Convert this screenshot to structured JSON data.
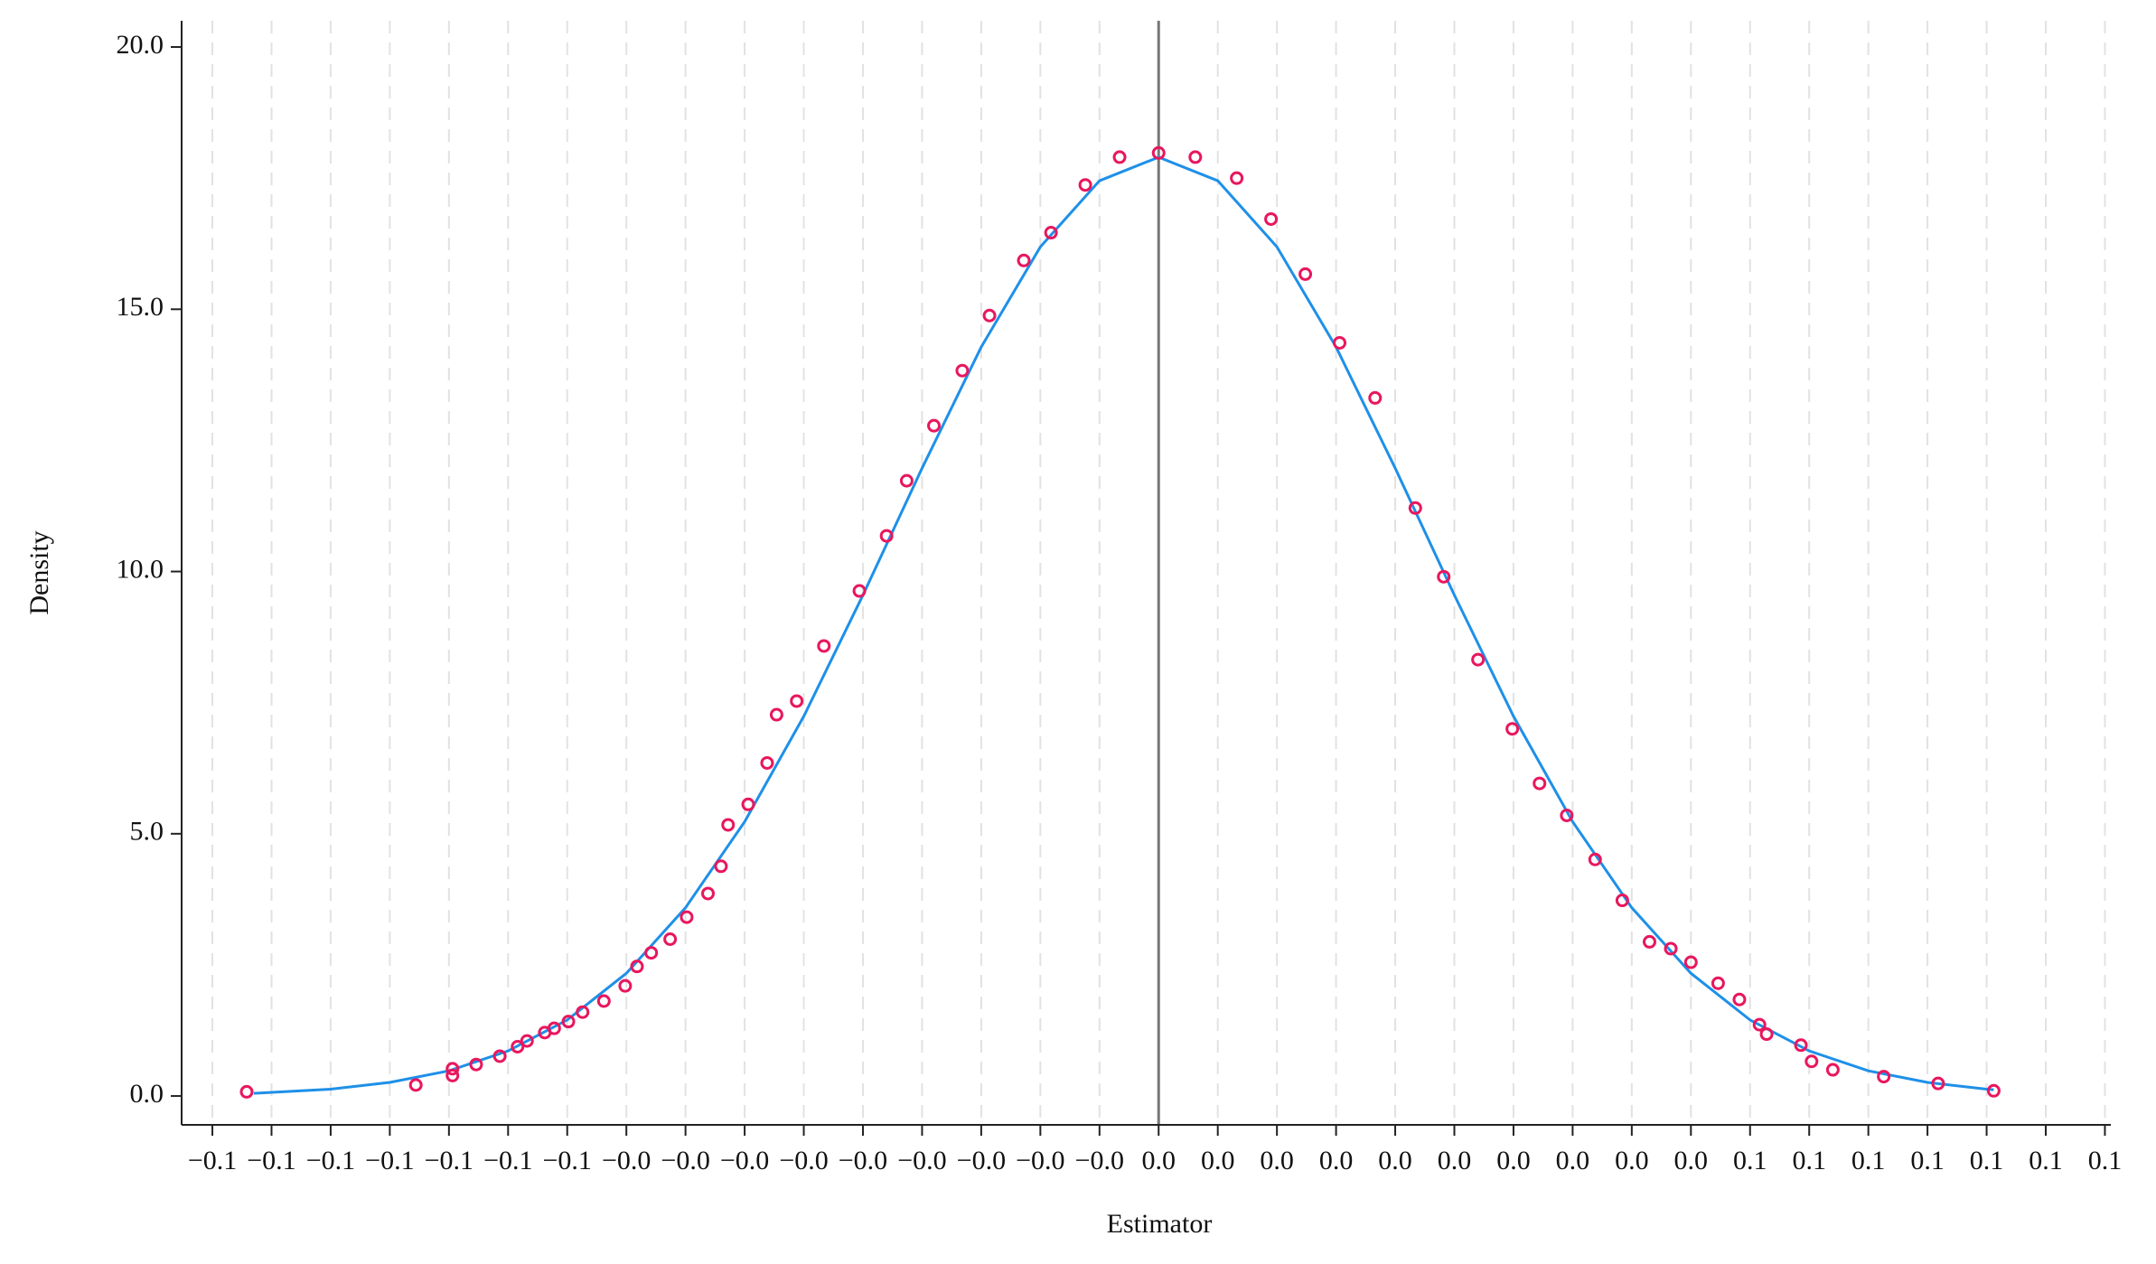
{
  "chart_data": {
    "type": "scatter",
    "xlabel": "Estimator",
    "ylabel": "Density",
    "xlim": [
      -0.0826,
      0.0805
    ],
    "ylim": [
      -0.55,
      20.5
    ],
    "xticks": [
      {
        "value": -0.08,
        "label": "−0.1"
      },
      {
        "value": -0.075,
        "label": "−0.1"
      },
      {
        "value": -0.07,
        "label": "−0.1"
      },
      {
        "value": -0.065,
        "label": "−0.1"
      },
      {
        "value": -0.06,
        "label": "−0.1"
      },
      {
        "value": -0.055,
        "label": "−0.1"
      },
      {
        "value": -0.05,
        "label": "−0.1"
      },
      {
        "value": -0.045,
        "label": "−0.0"
      },
      {
        "value": -0.04,
        "label": "−0.0"
      },
      {
        "value": -0.035,
        "label": "−0.0"
      },
      {
        "value": -0.03,
        "label": "−0.0"
      },
      {
        "value": -0.025,
        "label": "−0.0"
      },
      {
        "value": -0.02,
        "label": "−0.0"
      },
      {
        "value": -0.015,
        "label": "−0.0"
      },
      {
        "value": -0.01,
        "label": "−0.0"
      },
      {
        "value": -0.005,
        "label": "−0.0"
      },
      {
        "value": 0,
        "label": "0.0"
      },
      {
        "value": 0.005,
        "label": "0.0"
      },
      {
        "value": 0.01,
        "label": "0.0"
      },
      {
        "value": 0.015,
        "label": "0.0"
      },
      {
        "value": 0.02,
        "label": "0.0"
      },
      {
        "value": 0.025,
        "label": "0.0"
      },
      {
        "value": 0.03,
        "label": "0.0"
      },
      {
        "value": 0.035,
        "label": "0.0"
      },
      {
        "value": 0.04,
        "label": "0.0"
      },
      {
        "value": 0.045,
        "label": "0.0"
      },
      {
        "value": 0.05,
        "label": "0.1"
      },
      {
        "value": 0.055,
        "label": "0.1"
      },
      {
        "value": 0.06,
        "label": "0.1"
      },
      {
        "value": 0.065,
        "label": "0.1"
      },
      {
        "value": 0.07,
        "label": "0.1"
      },
      {
        "value": 0.075,
        "label": "0.1"
      },
      {
        "value": 0.08,
        "label": "0.1"
      }
    ],
    "yticks": [
      {
        "value": 0,
        "label": "0.0"
      },
      {
        "value": 5,
        "label": "5.0"
      },
      {
        "value": 10,
        "label": "10.0"
      },
      {
        "value": 15,
        "label": "15.0"
      },
      {
        "value": 20,
        "label": "20.0"
      }
    ],
    "grid": true,
    "vline": 0,
    "curve": {
      "color": "#1e90e8",
      "x": [
        -0.0765,
        -0.07,
        -0.065,
        -0.06,
        -0.055,
        -0.05,
        -0.045,
        -0.04,
        -0.035,
        -0.03,
        -0.025,
        -0.02,
        -0.015,
        -0.01,
        -0.005,
        0,
        0.005,
        0.01,
        0.015,
        0.02,
        0.025,
        0.03,
        0.035,
        0.04,
        0.045,
        0.05,
        0.055,
        0.06,
        0.065,
        0.07,
        0.0706
      ],
      "y": [
        0.05,
        0.13,
        0.26,
        0.48,
        0.86,
        1.45,
        2.34,
        3.59,
        5.23,
        7.24,
        9.55,
        11.97,
        14.28,
        16.19,
        17.45,
        17.9,
        17.45,
        16.19,
        14.28,
        11.97,
        9.55,
        7.24,
        5.23,
        3.59,
        2.34,
        1.45,
        0.86,
        0.48,
        0.26,
        0.13,
        0.12
      ]
    },
    "points": {
      "color": "#e8175d",
      "x": [
        -0.0771,
        -0.0628,
        -0.0597,
        -0.0597,
        -0.0577,
        -0.0557,
        -0.0542,
        -0.0534,
        -0.0519,
        -0.0511,
        -0.0499,
        -0.0487,
        -0.0469,
        -0.0451,
        -0.0441,
        -0.0429,
        -0.0413,
        -0.0399,
        -0.0381,
        -0.037,
        -0.0364,
        -0.0347,
        -0.0331,
        -0.0323,
        -0.0306,
        -0.0283,
        -0.0253,
        -0.023,
        -0.0213,
        -0.019,
        -0.0166,
        -0.0143,
        -0.0114,
        -0.0091,
        -0.0062,
        -0.0033,
        0,
        0.0031,
        0.0066,
        0.0095,
        0.0124,
        0.0153,
        0.0183,
        0.0217,
        0.0241,
        0.027,
        0.0299,
        0.0322,
        0.0345,
        0.0369,
        0.0392,
        0.0415,
        0.0433,
        0.045,
        0.0473,
        0.0491,
        0.0508,
        0.0514,
        0.0543,
        0.0552,
        0.057,
        0.0613,
        0.0659,
        0.0706
      ],
      "y": [
        0.08,
        0.21,
        0.39,
        0.52,
        0.6,
        0.76,
        0.94,
        1.05,
        1.21,
        1.29,
        1.42,
        1.6,
        1.81,
        2.1,
        2.47,
        2.73,
        2.99,
        3.41,
        3.86,
        4.38,
        5.17,
        5.56,
        6.35,
        7.27,
        7.53,
        8.58,
        9.63,
        10.68,
        11.73,
        12.78,
        13.83,
        14.88,
        15.93,
        16.46,
        17.37,
        17.9,
        17.98,
        17.9,
        17.5,
        16.72,
        15.67,
        14.36,
        13.31,
        11.21,
        9.9,
        8.32,
        7.0,
        5.96,
        5.35,
        4.51,
        3.73,
        2.94,
        2.81,
        2.55,
        2.15,
        1.84,
        1.36,
        1.18,
        0.97,
        0.66,
        0.5,
        0.37,
        0.24,
        0.1
      ]
    }
  }
}
